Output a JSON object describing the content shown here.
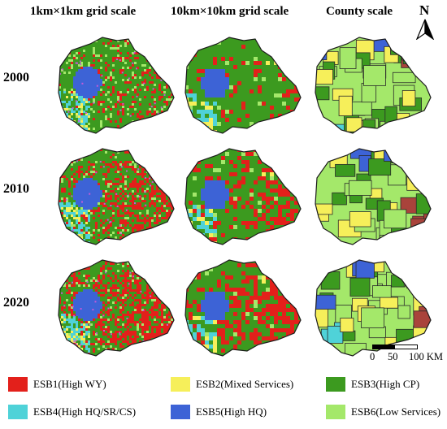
{
  "column_titles": [
    "1km×1km grid scale",
    "10km×10km grid scale",
    "County scale"
  ],
  "row_labels": [
    "2000",
    "2010",
    "2020"
  ],
  "north_arrow_label": "N",
  "scale_bar": {
    "labels": [
      "0",
      "50",
      "100 KM"
    ]
  },
  "legend": [
    {
      "label": "ESB1(High WY)",
      "color": "#e3201b"
    },
    {
      "label": "ESB2(Mixed Services)",
      "color": "#f6ef5a"
    },
    {
      "label": "ESB3(High CP)",
      "color": "#3c9a1f"
    },
    {
      "label": "ESB4(High HQ/SR/CS)",
      "color": "#4fd2d8"
    },
    {
      "label": "ESB5(High HQ)",
      "color": "#3d63d6"
    },
    {
      "label": "ESB6(Low Services)",
      "color": "#a4e86a"
    }
  ],
  "colors": {
    "county_border": "#2a2a2a",
    "county_red_fill": "#a9433b"
  }
}
